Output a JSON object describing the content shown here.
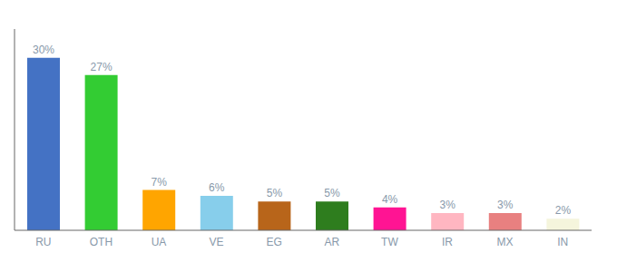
{
  "chart_data": {
    "type": "bar",
    "categories": [
      "RU",
      "OTH",
      "UA",
      "VE",
      "EG",
      "AR",
      "TW",
      "IR",
      "MX",
      "IN"
    ],
    "values": [
      30,
      27,
      7,
      6,
      5,
      5,
      4,
      3,
      3,
      2
    ],
    "value_labels": [
      "30%",
      "27%",
      "7%",
      "6%",
      "5%",
      "5%",
      "4%",
      "3%",
      "3%",
      "2%"
    ],
    "colors": [
      "#4472c4",
      "#33cc33",
      "#ffa500",
      "#87ceeb",
      "#b8651a",
      "#2e7d1e",
      "#ff1493",
      "#ffb6c1",
      "#e88080",
      "#f5f5dc"
    ],
    "ylim": [
      0,
      35
    ],
    "data_labels": true,
    "tick_labels": "x",
    "grid": false
  }
}
